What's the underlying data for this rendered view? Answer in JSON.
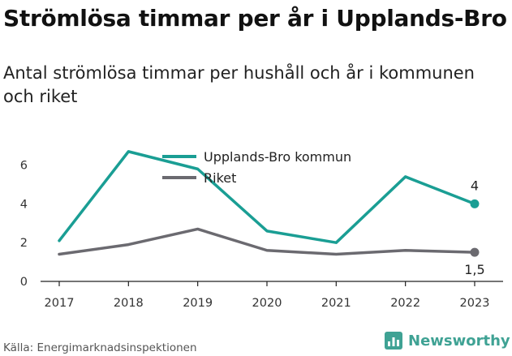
{
  "title": "Strömlösa timmar per år i Upplands-Bro",
  "subtitle": "Antal strömlösa timmar per hushåll och år i kommunen och riket",
  "source": "Källa: Energimarknadsinspektionen",
  "brand": {
    "name": "Newsworthy",
    "icon": "bar-chart-icon"
  },
  "colors": {
    "series_0": "#1a9e94",
    "series_1": "#6b6a70",
    "brand": "#3fa294"
  },
  "chart_data": {
    "type": "line",
    "x": [
      "2017",
      "2018",
      "2019",
      "2020",
      "2021",
      "2022",
      "2023"
    ],
    "ylim": [
      0,
      7
    ],
    "yticks": [
      "0",
      "2",
      "4",
      "6"
    ],
    "grid": false,
    "legend": "top",
    "series": [
      {
        "name": "Upplands-Bro kommun",
        "values": [
          2.1,
          6.7,
          5.8,
          2.6,
          2.0,
          5.4,
          4.0
        ],
        "end_label": "4"
      },
      {
        "name": "Riket",
        "values": [
          1.4,
          1.9,
          2.7,
          1.6,
          1.4,
          1.6,
          1.5
        ],
        "end_label": "1,5"
      }
    ]
  }
}
